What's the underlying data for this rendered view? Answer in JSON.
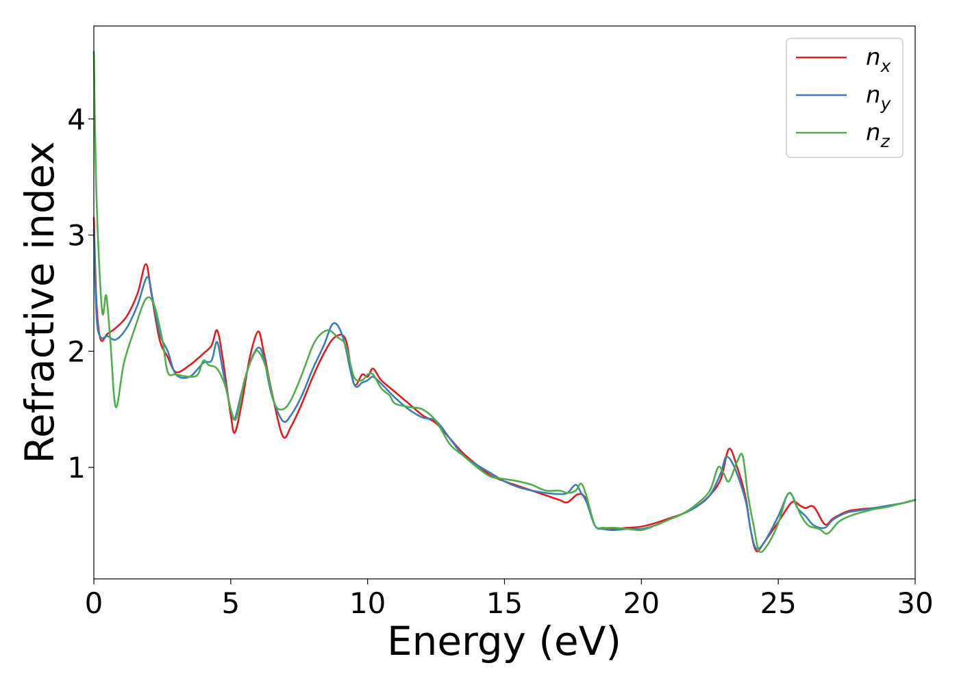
{
  "chart_data": {
    "type": "line",
    "xlabel": "Energy (eV)",
    "ylabel": "Refractive index",
    "xlim": [
      0,
      30
    ],
    "ylim": [
      0.04,
      4.8
    ],
    "xticks": [
      0,
      5,
      10,
      15,
      20,
      25,
      30
    ],
    "yticks": [
      1,
      2,
      3,
      4
    ],
    "grid": false,
    "legend_position": "top-right",
    "series": [
      {
        "name": "n_x",
        "label_base": "n",
        "label_sub": "x",
        "color": "#e41a1c",
        "x": [
          0,
          0.1,
          0.25,
          0.5,
          0.8,
          1.2,
          1.6,
          1.9,
          2.1,
          2.4,
          2.7,
          3.0,
          3.5,
          4.0,
          4.3,
          4.5,
          4.7,
          5.0,
          5.15,
          5.4,
          5.7,
          6.0,
          6.2,
          6.5,
          6.9,
          7.2,
          7.6,
          8.0,
          8.4,
          8.8,
          9.2,
          9.5,
          9.8,
          10.0,
          10.2,
          10.5,
          11.0,
          11.5,
          12.0,
          12.5,
          13.0,
          13.5,
          14.0,
          14.5,
          15.0,
          15.5,
          16.0,
          16.5,
          17.0,
          17.3,
          17.7,
          18.0,
          18.3,
          18.6,
          19.0,
          19.5,
          20.0,
          20.5,
          21.0,
          21.5,
          22.0,
          22.5,
          22.9,
          23.2,
          23.5,
          23.8,
          24.0,
          24.2,
          24.5,
          25.0,
          25.5,
          25.8,
          26.0,
          26.3,
          26.7,
          27.0,
          27.5,
          28.0,
          28.5,
          29.0,
          29.5,
          30.0
        ],
        "values": [
          3.15,
          2.4,
          2.1,
          2.15,
          2.2,
          2.3,
          2.5,
          2.75,
          2.5,
          2.1,
          1.95,
          1.82,
          1.88,
          1.98,
          2.05,
          2.18,
          1.95,
          1.45,
          1.3,
          1.55,
          1.95,
          2.17,
          2.0,
          1.65,
          1.27,
          1.35,
          1.55,
          1.78,
          1.98,
          2.12,
          2.1,
          1.72,
          1.8,
          1.78,
          1.85,
          1.75,
          1.65,
          1.55,
          1.45,
          1.38,
          1.25,
          1.12,
          1.02,
          0.93,
          0.88,
          0.84,
          0.8,
          0.76,
          0.72,
          0.7,
          0.77,
          0.72,
          0.5,
          0.47,
          0.47,
          0.48,
          0.49,
          0.52,
          0.56,
          0.6,
          0.66,
          0.76,
          0.9,
          1.16,
          1.0,
          0.75,
          0.45,
          0.28,
          0.36,
          0.53,
          0.7,
          0.67,
          0.65,
          0.66,
          0.51,
          0.56,
          0.62,
          0.64,
          0.65,
          0.67,
          0.69,
          0.72
        ]
      },
      {
        "name": "n_y",
        "label_base": "n",
        "label_sub": "y",
        "color": "#377eb8",
        "x": [
          0,
          0.1,
          0.25,
          0.5,
          0.8,
          1.2,
          1.6,
          1.95,
          2.15,
          2.4,
          2.7,
          3.0,
          3.5,
          4.0,
          4.3,
          4.5,
          4.7,
          5.0,
          5.15,
          5.4,
          5.7,
          6.0,
          6.2,
          6.5,
          6.9,
          7.2,
          7.6,
          8.0,
          8.4,
          8.75,
          9.1,
          9.5,
          9.8,
          10.0,
          10.2,
          10.5,
          11.0,
          11.5,
          12.0,
          12.5,
          13.0,
          13.5,
          14.0,
          14.5,
          15.0,
          15.5,
          16.0,
          16.5,
          17.0,
          17.3,
          17.6,
          17.8,
          18.0,
          18.3,
          18.6,
          19.0,
          19.5,
          20.0,
          20.5,
          21.0,
          21.5,
          22.0,
          22.5,
          22.9,
          23.1,
          23.4,
          23.8,
          24.0,
          24.2,
          24.5,
          25.0,
          25.4,
          25.7,
          26.0,
          26.3,
          26.7,
          27.0,
          27.5,
          28.0,
          28.5,
          29.0,
          29.5,
          30.0
        ],
        "values": [
          3.05,
          2.3,
          2.12,
          2.13,
          2.1,
          2.2,
          2.4,
          2.64,
          2.45,
          2.15,
          2.0,
          1.8,
          1.78,
          1.9,
          1.92,
          2.08,
          1.85,
          1.5,
          1.42,
          1.65,
          1.9,
          2.03,
          1.95,
          1.62,
          1.4,
          1.45,
          1.62,
          1.85,
          2.05,
          2.24,
          2.12,
          1.72,
          1.73,
          1.75,
          1.78,
          1.72,
          1.6,
          1.5,
          1.43,
          1.4,
          1.25,
          1.1,
          1.02,
          0.95,
          0.88,
          0.83,
          0.8,
          0.78,
          0.77,
          0.78,
          0.85,
          0.78,
          0.7,
          0.5,
          0.47,
          0.46,
          0.47,
          0.47,
          0.5,
          0.55,
          0.6,
          0.66,
          0.76,
          0.95,
          1.09,
          1.0,
          0.72,
          0.45,
          0.3,
          0.36,
          0.58,
          0.78,
          0.65,
          0.58,
          0.5,
          0.48,
          0.55,
          0.61,
          0.63,
          0.65,
          0.67,
          0.69,
          0.72
        ]
      },
      {
        "name": "n_z",
        "label_base": "n",
        "label_sub": "z",
        "color": "#4daf4a",
        "x": [
          0,
          0.1,
          0.3,
          0.45,
          0.6,
          0.8,
          1.1,
          1.5,
          1.9,
          2.2,
          2.5,
          2.7,
          3.0,
          3.5,
          3.8,
          4.0,
          4.2,
          4.5,
          4.8,
          5.0,
          5.2,
          5.5,
          5.8,
          6.0,
          6.3,
          6.6,
          6.9,
          7.2,
          7.6,
          8.0,
          8.3,
          8.6,
          8.9,
          9.2,
          9.5,
          9.8,
          10.0,
          10.2,
          10.5,
          10.8,
          11.0,
          11.5,
          12.0,
          12.5,
          13.0,
          13.5,
          14.0,
          14.5,
          15.0,
          15.5,
          16.0,
          16.5,
          17.0,
          17.3,
          17.6,
          17.8,
          18.0,
          18.3,
          18.6,
          19.0,
          19.5,
          20.0,
          20.5,
          21.0,
          21.5,
          22.0,
          22.5,
          22.8,
          23.0,
          23.2,
          23.5,
          23.7,
          23.9,
          24.1,
          24.3,
          24.6,
          25.0,
          25.3,
          25.5,
          25.8,
          26.1,
          26.5,
          26.8,
          27.2,
          27.6,
          28.0,
          28.5,
          29.0,
          29.5,
          30.0
        ],
        "values": [
          4.58,
          3.3,
          2.35,
          2.48,
          2.1,
          1.52,
          1.9,
          2.2,
          2.45,
          2.4,
          2.1,
          1.82,
          1.8,
          1.78,
          1.8,
          1.92,
          1.88,
          1.85,
          1.7,
          1.5,
          1.42,
          1.75,
          1.95,
          2.0,
          1.85,
          1.55,
          1.5,
          1.58,
          1.8,
          2.05,
          2.15,
          2.18,
          2.12,
          2.05,
          1.78,
          1.75,
          1.8,
          1.8,
          1.68,
          1.62,
          1.55,
          1.52,
          1.5,
          1.4,
          1.2,
          1.1,
          1.0,
          0.92,
          0.9,
          0.88,
          0.85,
          0.8,
          0.8,
          0.78,
          0.8,
          0.86,
          0.75,
          0.5,
          0.48,
          0.48,
          0.47,
          0.46,
          0.5,
          0.55,
          0.6,
          0.68,
          0.8,
          1.0,
          0.95,
          0.88,
          1.05,
          1.1,
          0.75,
          0.5,
          0.28,
          0.33,
          0.52,
          0.75,
          0.76,
          0.6,
          0.5,
          0.47,
          0.43,
          0.53,
          0.58,
          0.61,
          0.64,
          0.66,
          0.69,
          0.72
        ]
      }
    ]
  }
}
